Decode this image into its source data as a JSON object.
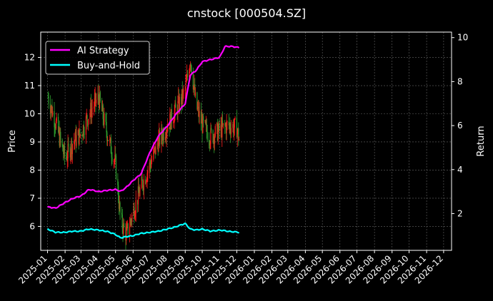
{
  "chart_data": {
    "type": "line",
    "title": "cnstock [000504.SZ]",
    "ylabel_left": "Price",
    "ylabel_right": "Return",
    "ylim_left": [
      5.15,
      12.9
    ],
    "ylim_right": [
      0.33,
      10.25
    ],
    "y_ticks_left": [
      "6",
      "7",
      "8",
      "9",
      "10",
      "11",
      "12"
    ],
    "y_ticks_right": [
      "2",
      "4",
      "6",
      "8",
      "10"
    ],
    "x_ticks": [
      "2025-01",
      "2025-02",
      "2025-03",
      "2025-04",
      "2025-05",
      "2025-06",
      "2025-07",
      "2025-08",
      "2025-09",
      "2025-10",
      "2025-11",
      "2025-12",
      "2026-01",
      "2026-02",
      "2026-03",
      "2026-04",
      "2026-05",
      "2026-06",
      "2026-07",
      "2026-08",
      "2026-09",
      "2026-10",
      "2026-11",
      "2026-12"
    ],
    "grid": true,
    "legend_position": "top-left",
    "colors": {
      "up": "#ff1a1a",
      "down": "#2ea02e",
      "strategy": "#ff00ff",
      "buyhold": "#00ffff"
    },
    "price_close_approx": {
      "x": [
        "2025-01-02",
        "2025-01-15",
        "2025-02-01",
        "2025-02-15",
        "2025-03-01",
        "2025-03-15",
        "2025-04-01",
        "2025-04-10",
        "2025-04-20",
        "2025-05-01",
        "2025-05-10",
        "2025-05-20",
        "2025-06-01",
        "2025-06-15",
        "2025-07-01",
        "2025-07-15",
        "2025-08-01",
        "2025-08-15",
        "2025-09-01",
        "2025-09-10",
        "2025-09-20",
        "2025-10-01",
        "2025-10-15",
        "2025-11-01",
        "2025-11-15",
        "2025-12-01",
        "2025-12-05"
      ],
      "values": [
        10.6,
        9.7,
        8.4,
        9.0,
        9.3,
        10.0,
        10.6,
        9.8,
        9.0,
        8.2,
        6.2,
        5.7,
        6.5,
        7.4,
        8.2,
        9.0,
        9.6,
        10.1,
        10.8,
        12.0,
        10.3,
        9.6,
        9.2,
        9.4,
        9.6,
        9.5,
        9.1
      ]
    },
    "series": [
      {
        "name": "AI Strategy",
        "x": [
          "2025-01-01",
          "2025-01-15",
          "2025-02-01",
          "2025-02-15",
          "2025-03-01",
          "2025-03-15",
          "2025-04-01",
          "2025-04-15",
          "2025-05-01",
          "2025-05-10",
          "2025-05-20",
          "2025-06-01",
          "2025-06-15",
          "2025-07-01",
          "2025-07-15",
          "2025-08-01",
          "2025-08-15",
          "2025-09-01",
          "2025-09-10",
          "2025-09-20",
          "2025-10-01",
          "2025-10-15",
          "2025-11-01",
          "2025-11-10",
          "2025-11-20",
          "2025-12-05"
        ],
        "values": [
          2.3,
          2.25,
          2.5,
          2.7,
          2.8,
          3.1,
          3.0,
          3.05,
          3.1,
          3.0,
          3.2,
          3.5,
          3.8,
          4.8,
          5.5,
          6.0,
          6.5,
          7.0,
          8.3,
          8.5,
          8.9,
          9.0,
          9.1,
          9.6,
          9.6,
          9.55
        ]
      },
      {
        "name": "Buy-and-Hold",
        "x": [
          "2025-01-01",
          "2025-01-15",
          "2025-02-01",
          "2025-02-15",
          "2025-03-01",
          "2025-03-15",
          "2025-04-01",
          "2025-04-15",
          "2025-05-01",
          "2025-05-10",
          "2025-05-20",
          "2025-06-01",
          "2025-06-15",
          "2025-07-01",
          "2025-07-15",
          "2025-08-01",
          "2025-08-15",
          "2025-09-01",
          "2025-09-10",
          "2025-09-20",
          "2025-10-01",
          "2025-10-15",
          "2025-11-01",
          "2025-11-15",
          "2025-12-05"
        ],
        "values": [
          1.3,
          1.15,
          1.15,
          1.2,
          1.2,
          1.3,
          1.25,
          1.2,
          1.05,
          0.9,
          0.95,
          1.0,
          1.1,
          1.15,
          1.2,
          1.3,
          1.4,
          1.55,
          1.3,
          1.25,
          1.3,
          1.2,
          1.25,
          1.2,
          1.15
        ]
      }
    ]
  }
}
